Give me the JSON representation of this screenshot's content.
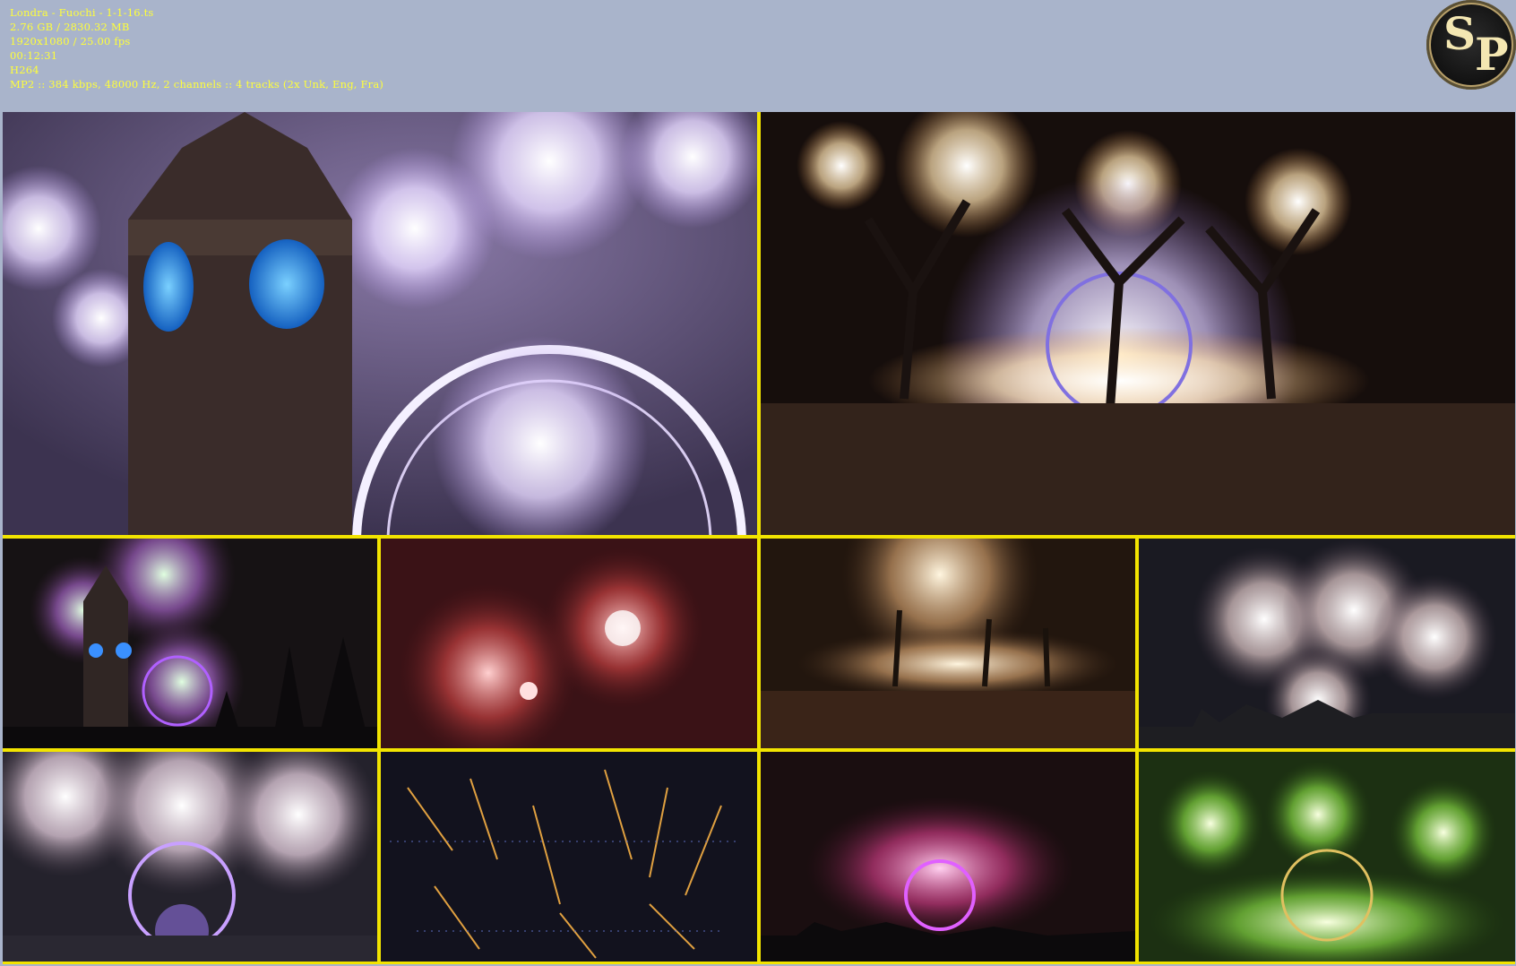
{
  "info": {
    "line1": "Londra - Fuochi - 1-1-16.ts",
    "line2": "2.76 GB / 2830.32 MB",
    "line3": "1920x1080 / 25.00 fps",
    "line4": "00:12:31",
    "line5": "H264",
    "line6": "MP2 :: 384 kbps, 48000 Hz, 2 channels :: 4 tracks (2x Unk, Eng, Fra)"
  },
  "logo": {
    "letter1": "S",
    "letter2": "P"
  },
  "thumbnails": [
    {
      "name": "thumb-big-ben-eye-fireworks",
      "bg": "#4a3f5e"
    },
    {
      "name": "thumb-crowd-trees-fireworks",
      "bg": "#1a120e"
    },
    {
      "name": "thumb-big-ben-parliament",
      "bg": "#1a1418"
    },
    {
      "name": "thumb-red-fireworks",
      "bg": "#3a1418"
    },
    {
      "name": "thumb-embankment-crowd",
      "bg": "#2a1c10"
    },
    {
      "name": "thumb-skyline-fireworks",
      "bg": "#1c1c24"
    },
    {
      "name": "thumb-london-eye-white",
      "bg": "#26242e"
    },
    {
      "name": "thumb-gold-sparks",
      "bg": "#141420"
    },
    {
      "name": "thumb-pink-eye",
      "bg": "#1c1012"
    },
    {
      "name": "thumb-green-fireworks",
      "bg": "#1c3414"
    }
  ]
}
